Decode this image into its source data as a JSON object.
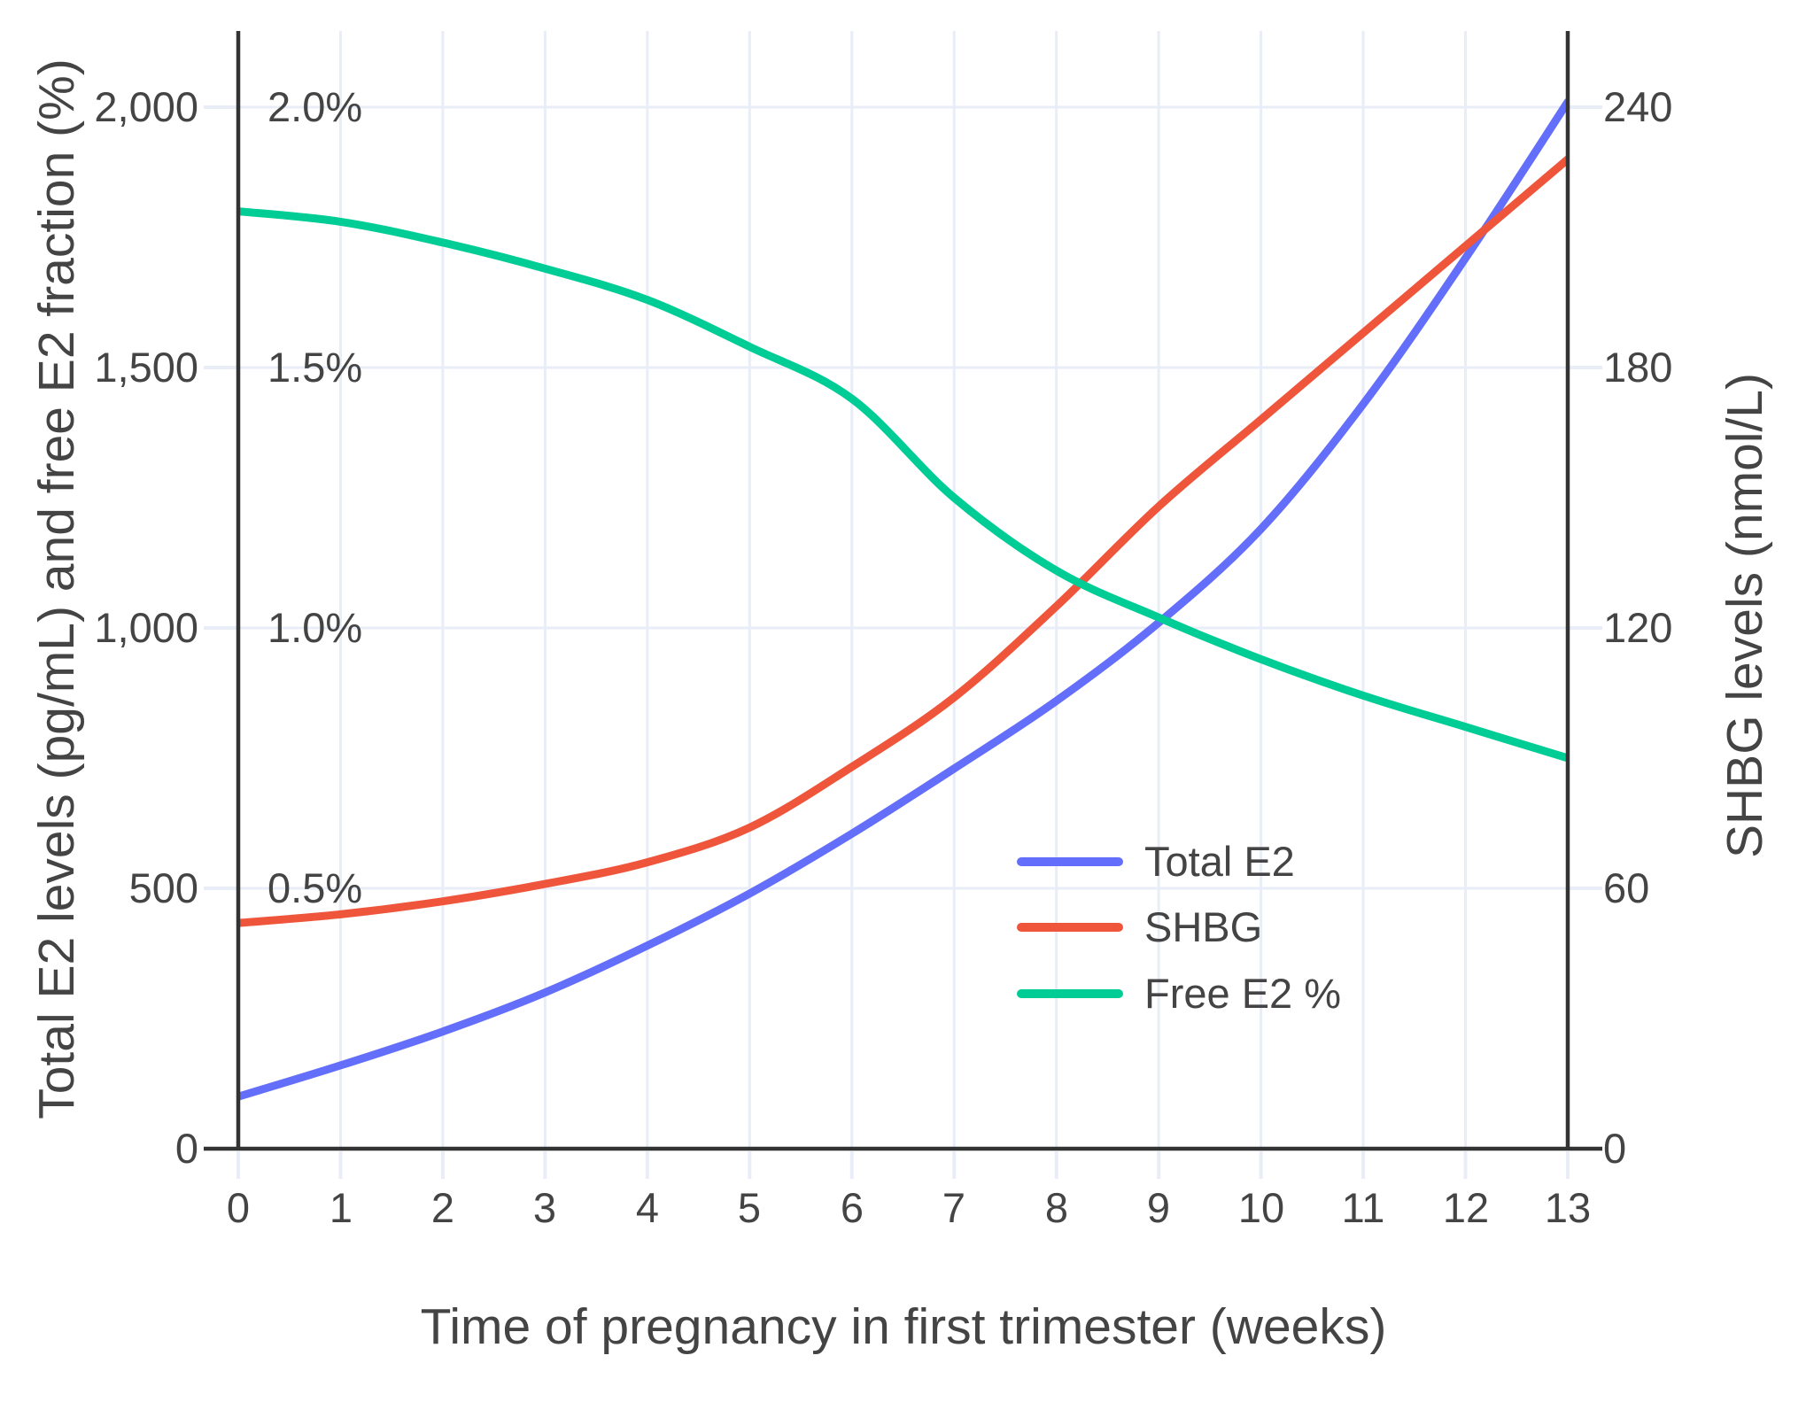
{
  "chart": {
    "x_axis": {
      "title": "Time of pregnancy in first trimester (weeks)",
      "ticks": [
        "0",
        "1",
        "2",
        "3",
        "4",
        "5",
        "6",
        "7",
        "8",
        "9",
        "10",
        "11",
        "12",
        "13"
      ]
    },
    "left_axis": {
      "title": "Total E2 levels (pg/mL) and free E2 fraction (%)",
      "ticks": [
        "0",
        "500",
        "1,000",
        "1,500",
        "2,000"
      ]
    },
    "percent_axis": {
      "ticks": [
        "0.5%",
        "1.0%",
        "1.5%",
        "2.0%"
      ]
    },
    "right_axis": {
      "title": "SHBG levels (nmol/L)",
      "ticks": [
        "0",
        "60",
        "120",
        "180",
        "240"
      ]
    },
    "colors": {
      "total_e2": "#636EFA",
      "shbg": "#EF553B",
      "free_e2": "#00CC96",
      "grid": "#E8EDF7",
      "axis_line": "#333333",
      "text": "#444444"
    }
  },
  "chart_data": {
    "type": "line",
    "title": "",
    "xlabel": "Time of pregnancy in first trimester (weeks)",
    "ylabel_left": "Total E2 levels (pg/mL) and free E2 fraction (%)",
    "ylabel_right": "SHBG levels (nmol/L)",
    "x": [
      0,
      1,
      2,
      3,
      4,
      5,
      6,
      7,
      8,
      9,
      10,
      11,
      12,
      13
    ],
    "xlim": [
      0,
      13
    ],
    "ylim_left_pgml": [
      0,
      2145
    ],
    "ylim_right_nmoll": [
      0,
      257
    ],
    "ylim_percent": [
      0,
      2.145
    ],
    "grid": true,
    "legend_position": "inside-right-middle",
    "series": [
      {
        "name": "Total E2",
        "axis": "left",
        "units": "pg/mL",
        "color": "#636EFA",
        "values": [
          100,
          160,
          225,
          300,
          390,
          490,
          605,
          730,
          860,
          1010,
          1190,
          1430,
          1710,
          2010
        ]
      },
      {
        "name": "SHBG",
        "axis": "right",
        "units": "nmol/L",
        "color": "#EF553B",
        "values": [
          52,
          54,
          57,
          61,
          66,
          74,
          88,
          104,
          125,
          148,
          168,
          188,
          208,
          228
        ]
      },
      {
        "name": "Free E2 %",
        "axis": "percent",
        "units": "%",
        "color": "#00CC96",
        "values": [
          1.8,
          1.78,
          1.74,
          1.69,
          1.63,
          1.54,
          1.44,
          1.25,
          1.11,
          1.02,
          0.94,
          0.87,
          0.81,
          0.75
        ]
      }
    ]
  }
}
